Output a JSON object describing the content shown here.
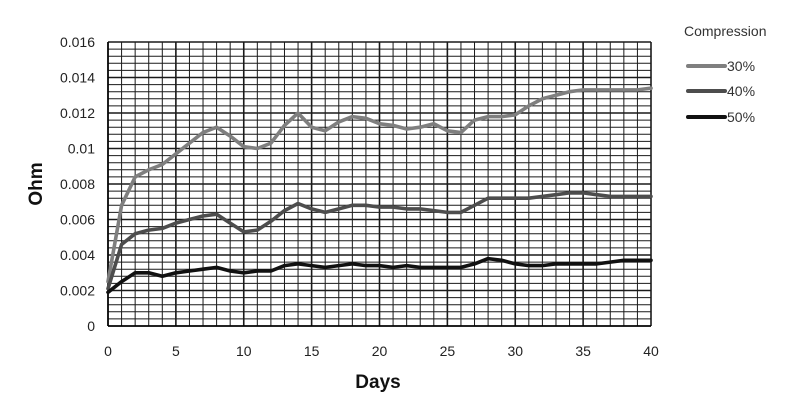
{
  "chart_data": {
    "type": "line",
    "title": "",
    "xlabel": "Days",
    "ylabel": "Ohm",
    "xlim": [
      0,
      40
    ],
    "ylim": [
      0,
      0.016
    ],
    "x_ticks": [
      "0",
      "5",
      "10",
      "15",
      "20",
      "25",
      "30",
      "35",
      "40"
    ],
    "y_ticks": [
      "0",
      "0.002",
      "0.004",
      "0.006",
      "0.008",
      "0.01",
      "0.012",
      "0.014",
      "0.016"
    ],
    "grid": true,
    "legend": {
      "title": "Compression",
      "position": "right"
    },
    "series": [
      {
        "name": "30%",
        "color": "#7f7f7f",
        "x": [
          0,
          1,
          2,
          3,
          4,
          5,
          6,
          7,
          8,
          9,
          10,
          11,
          12,
          13,
          14,
          15,
          16,
          17,
          18,
          19,
          20,
          21,
          22,
          23,
          24,
          25,
          26,
          27,
          28,
          29,
          30,
          31,
          32,
          33,
          34,
          35,
          36,
          37,
          38,
          39,
          40
        ],
        "y": [
          0.0025,
          0.0068,
          0.0084,
          0.0088,
          0.0091,
          0.0097,
          0.0103,
          0.0109,
          0.0112,
          0.0107,
          0.0101,
          0.01,
          0.0103,
          0.0113,
          0.012,
          0.0112,
          0.011,
          0.0115,
          0.0118,
          0.0117,
          0.0114,
          0.0113,
          0.0111,
          0.0112,
          0.0114,
          0.011,
          0.0109,
          0.0116,
          0.0118,
          0.0118,
          0.0119,
          0.0124,
          0.0128,
          0.013,
          0.0132,
          0.0133,
          0.0133,
          0.0133,
          0.0133,
          0.0133,
          0.0134
        ]
      },
      {
        "name": "40%",
        "color": "#4d4d4d",
        "x": [
          0,
          1,
          2,
          3,
          4,
          5,
          6,
          7,
          8,
          9,
          10,
          11,
          12,
          13,
          14,
          15,
          16,
          17,
          18,
          19,
          20,
          21,
          22,
          23,
          24,
          25,
          26,
          27,
          28,
          29,
          30,
          31,
          32,
          33,
          34,
          35,
          36,
          37,
          38,
          39,
          40
        ],
        "y": [
          0.0021,
          0.0046,
          0.0052,
          0.0054,
          0.0055,
          0.0058,
          0.006,
          0.0062,
          0.0063,
          0.0058,
          0.0053,
          0.0054,
          0.0059,
          0.0065,
          0.0069,
          0.0066,
          0.0064,
          0.0066,
          0.0068,
          0.0068,
          0.0067,
          0.0067,
          0.0066,
          0.0066,
          0.0065,
          0.0064,
          0.0064,
          0.0068,
          0.0072,
          0.0072,
          0.0072,
          0.0072,
          0.0073,
          0.0074,
          0.0075,
          0.0075,
          0.0074,
          0.0073,
          0.0073,
          0.0073,
          0.0073
        ]
      },
      {
        "name": "50%",
        "color": "#111111",
        "x": [
          0,
          1,
          2,
          3,
          4,
          5,
          6,
          7,
          8,
          9,
          10,
          11,
          12,
          13,
          14,
          15,
          16,
          17,
          18,
          19,
          20,
          21,
          22,
          23,
          24,
          25,
          26,
          27,
          28,
          29,
          30,
          31,
          32,
          33,
          34,
          35,
          36,
          37,
          38,
          39,
          40
        ],
        "y": [
          0.0019,
          0.0025,
          0.003,
          0.003,
          0.0028,
          0.003,
          0.0031,
          0.0032,
          0.0033,
          0.0031,
          0.003,
          0.0031,
          0.0031,
          0.0034,
          0.0035,
          0.0034,
          0.0033,
          0.0034,
          0.0035,
          0.0034,
          0.0034,
          0.0033,
          0.0034,
          0.0033,
          0.0033,
          0.0033,
          0.0033,
          0.0035,
          0.0038,
          0.0037,
          0.0035,
          0.0034,
          0.0034,
          0.0035,
          0.0035,
          0.0035,
          0.0035,
          0.0036,
          0.0037,
          0.0037,
          0.0037
        ]
      }
    ]
  }
}
